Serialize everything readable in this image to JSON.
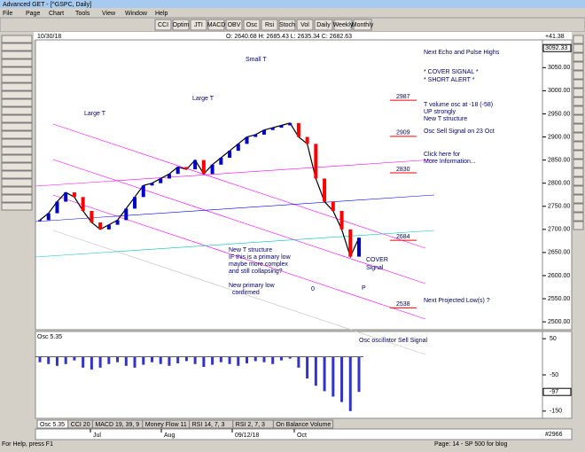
{
  "window": {
    "title": "Advanced GET - [^GSPC, Daily]",
    "menu": [
      "File",
      "Page",
      "Chart",
      "Tools",
      "View",
      "Window",
      "Help"
    ],
    "toolbar": [
      "CCI",
      "Optim",
      "JTI",
      "MACD",
      "OBV",
      "Osc",
      "Rsi",
      "Stoch",
      "Vol",
      "Daily",
      "Weekly",
      "Monthly"
    ],
    "info": {
      "date": "10/30/18",
      "ohlc": "O: 2640.68  H: 2685.43  L: 2635.34  C: 2682.63",
      "change": "+41.38"
    },
    "tabs": [
      "Osc 5.35",
      "CCI 20",
      "MACD 19, 39, 9",
      "Money Flow 11",
      "RSI 14, 7, 3",
      "RSI 2, 7, 3",
      "On Balance Volume"
    ],
    "status": {
      "help": "For Help, press F1",
      "page": "Page: 14 - SP 500 for blog",
      "bar": "#2966"
    }
  },
  "price_panel": {
    "ylim": [
      2483,
      3110
    ],
    "yticks": [
      {
        "value": 2500,
        "label": "2500.00"
      },
      {
        "value": 2550,
        "label": "2550.00"
      },
      {
        "value": 2600,
        "label": "2600.00"
      },
      {
        "value": 2650,
        "label": "2650.00"
      },
      {
        "value": 2700,
        "label": "2700.00"
      },
      {
        "value": 2750,
        "label": "2750.00"
      },
      {
        "value": 2800,
        "label": "2800.00"
      },
      {
        "value": 2850,
        "label": "2850.00"
      },
      {
        "value": 2900,
        "label": "2900.00"
      },
      {
        "value": 2950,
        "label": "2950.00"
      },
      {
        "value": 3000,
        "label": "3000.00"
      },
      {
        "value": 3050,
        "label": "3050.00"
      }
    ],
    "last": {
      "value": 3092.33,
      "label": "3092.33"
    },
    "closes": [
      2720,
      2735,
      2760,
      2780,
      2770,
      2740,
      2715,
      2700,
      2710,
      2720,
      2745,
      2770,
      2795,
      2800,
      2810,
      2820,
      2835,
      2830,
      2850,
      2820,
      2840,
      2855,
      2870,
      2885,
      2900,
      2905,
      2915,
      2920,
      2925,
      2930,
      2900,
      2885,
      2810,
      2760,
      2740,
      2700,
      2641,
      2682
    ],
    "levels": [
      {
        "value": 2987,
        "label": "2987"
      },
      {
        "value": 2909,
        "label": "2909"
      },
      {
        "value": 2830,
        "label": "2830"
      },
      {
        "value": 2684,
        "label": "2684"
      },
      {
        "value": 2538,
        "label": "2538"
      }
    ],
    "annotations": [
      "Small T",
      "Large T",
      "Large T",
      "Next Echo and Pulse Highs",
      "* COVER SIGNAL *",
      "* SHORT ALERT *",
      "T volume osc at -18 (-58)",
      "UP strongly",
      "New T structure",
      "Osc Sell Signal on 23 Oct",
      "Click here for",
      "More Information...",
      "New T structure",
      "IF this is a primary low",
      "maybe more complex",
      "and still collapsing?",
      "New primary low",
      "confirmed",
      "COVER",
      "Signal",
      "P",
      "0",
      "Next Projected Low(s) ?"
    ]
  },
  "osc_panel": {
    "label": "Osc 5.35",
    "ylim": [
      -170,
      70
    ],
    "yticks": [
      50,
      -50,
      -150
    ],
    "last": -97,
    "values": [
      -15,
      -20,
      -25,
      -20,
      -10,
      -30,
      -35,
      -30,
      -20,
      -15,
      -25,
      -30,
      -22,
      -15,
      -20,
      -25,
      -18,
      -12,
      -20,
      -28,
      -22,
      -15,
      -20,
      -25,
      -18,
      -12,
      -15,
      -20,
      -10,
      -5,
      -30,
      -60,
      -80,
      -95,
      -110,
      -125,
      -150,
      -97
    ],
    "annotation": "Osc oscillator Sell Signal"
  },
  "dates": [
    "Jul",
    "Aug",
    "09/12/18",
    "Oct"
  ]
}
